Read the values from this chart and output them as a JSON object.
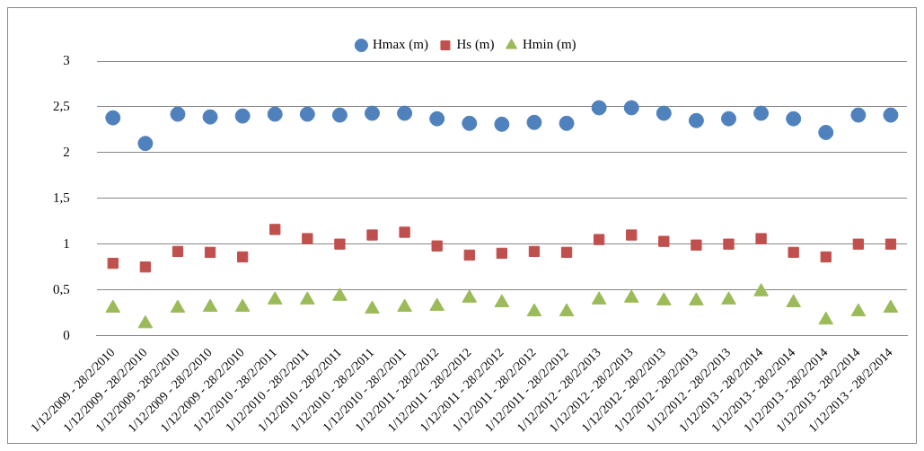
{
  "chart_data": {
    "type": "scatter",
    "categories": [
      "1/12/2009 - 28/2/2010",
      "1/12/2009 - 28/2/2010",
      "1/12/2009 - 28/2/2010",
      "1/12/2009 - 28/2/2010",
      "1/12/2009 - 28/2/2010",
      "1/12/2010 - 28/2/2011",
      "1/12/2010 - 28/2/2011",
      "1/12/2010 - 28/2/2011",
      "1/12/2010 - 28/2/2011",
      "1/12/2010 - 28/2/2011",
      "1/12/2011 - 28/2/2012",
      "1/12/2011 - 28/2/2012",
      "1/12/2011 - 28/2/2012",
      "1/12/2011 - 28/2/2012",
      "1/12/2011 - 28/2/2012",
      "1/12/2012 - 28/2/2013",
      "1/12/2012 - 28/2/2013",
      "1/12/2012 - 28/2/2013",
      "1/12/2012 - 28/2/2013",
      "1/12/2012 - 28/2/2013",
      "1/12/2013 - 28/2/2014",
      "1/12/2013 - 28/2/2014",
      "1/12/2013 - 28/2/2014",
      "1/12/2013 - 28/2/2014",
      "1/12/2013 - 28/2/2014"
    ],
    "series": [
      {
        "name": "Hmax (m)",
        "color": "#4f81bd",
        "marker": "circle",
        "values": [
          2.38,
          2.1,
          2.42,
          2.39,
          2.4,
          2.42,
          2.42,
          2.41,
          2.43,
          2.43,
          2.37,
          2.32,
          2.31,
          2.33,
          2.32,
          2.49,
          2.49,
          2.43,
          2.35,
          2.37,
          2.43,
          2.37,
          2.22,
          2.41,
          2.41
        ]
      },
      {
        "name": "Hs (m)",
        "color": "#c0504d",
        "marker": "square",
        "values": [
          0.79,
          0.75,
          0.92,
          0.91,
          0.86,
          1.16,
          1.06,
          1.0,
          1.1,
          1.13,
          0.98,
          0.88,
          0.9,
          0.92,
          0.91,
          1.05,
          1.1,
          1.03,
          0.99,
          1.0,
          1.06,
          0.91,
          0.86,
          1.0,
          1.0
        ]
      },
      {
        "name": "Hmin (m)",
        "color": "#9bbb59",
        "marker": "triangle",
        "values": [
          0.3,
          0.13,
          0.3,
          0.31,
          0.31,
          0.39,
          0.39,
          0.43,
          0.29,
          0.31,
          0.32,
          0.41,
          0.36,
          0.26,
          0.26,
          0.39,
          0.41,
          0.38,
          0.38,
          0.39,
          0.48,
          0.36,
          0.17,
          0.26,
          0.3
        ]
      }
    ],
    "ylim": [
      0,
      3
    ],
    "yticks": [
      0,
      {
        "value": 0.5,
        "label": "0,5"
      },
      1,
      {
        "value": 1.5,
        "label": "1,5"
      },
      2,
      {
        "value": 2.5,
        "label": "2,5"
      },
      3
    ],
    "grid": "y",
    "legend": "top"
  }
}
